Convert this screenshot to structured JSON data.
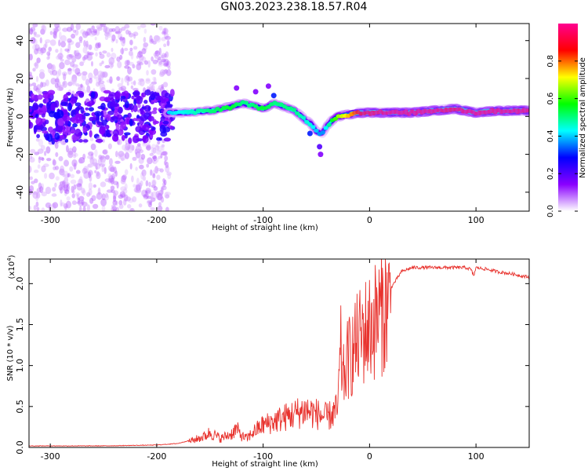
{
  "title": "GN03.2023.238.18.57.R04",
  "chart_data": [
    {
      "type": "heatmap",
      "xlabel": "Height of straight line (km)",
      "ylabel": "Frequency (Hz)",
      "xlim": [
        -320,
        150
      ],
      "ylim": [
        -50,
        49
      ],
      "xticks": [
        -300,
        -200,
        -100,
        0,
        100
      ],
      "xtick_labels": [
        "-300",
        "-200",
        "-100",
        "0",
        "100"
      ],
      "yticks": [
        -40,
        -20,
        0,
        20,
        40
      ],
      "ytick_labels": [
        "-40",
        "-20",
        "0",
        "20",
        "40"
      ],
      "colorbar": {
        "label": "Normalized spectral amplitude",
        "range": [
          0,
          1
        ],
        "ticks": [
          0,
          0.2,
          0.4,
          0.6,
          0.8
        ],
        "tick_labels": [
          "0.0",
          "0.2",
          "0.4",
          "0.6",
          "0.8"
        ],
        "colors": [
          "#ffffff",
          "#8a00ff",
          "#0000ff",
          "#00ffff",
          "#00ff00",
          "#ffff00",
          "#ff0000",
          "#ff0090"
        ]
      },
      "ridge": {
        "x": [
          -190,
          -170,
          -150,
          -130,
          -120,
          -110,
          -100,
          -90,
          -80,
          -70,
          -60,
          -55,
          -50,
          -45,
          -40,
          -35,
          -30,
          -20,
          -10,
          0,
          20,
          40,
          60,
          80,
          90,
          100,
          120,
          150
        ],
        "y": [
          2,
          2,
          3,
          5,
          7,
          6,
          4,
          7,
          5,
          3,
          -2,
          -4,
          -8,
          -9,
          -5,
          -2,
          0,
          1,
          2,
          2,
          2,
          2,
          3,
          4,
          3,
          2,
          3,
          3
        ],
        "amplitude": [
          0.35,
          0.4,
          0.45,
          0.5,
          0.45,
          0.45,
          0.5,
          0.45,
          0.45,
          0.45,
          0.4,
          0.4,
          0.35,
          0.3,
          0.4,
          0.5,
          0.6,
          0.7,
          0.8,
          0.85,
          0.9,
          0.9,
          0.9,
          0.85,
          0.9,
          0.9,
          0.9,
          0.9
        ]
      }
    },
    {
      "type": "line",
      "xlabel": "Height of straight line (km)",
      "ylabel": "SNR (10 * v/v)",
      "multiplier_label": "(x10",
      "multiplier_exp": "4",
      "multiplier_close": ")",
      "xlim": [
        -320,
        150
      ],
      "ylim": [
        0,
        2.3
      ],
      "xticks": [
        -300,
        -200,
        -100,
        0,
        100
      ],
      "xtick_labels": [
        "-300",
        "-200",
        "-100",
        "0",
        "100"
      ],
      "yticks": [
        0,
        0.5,
        1.0,
        1.5,
        2.0
      ],
      "ytick_labels": [
        "0.0",
        "0.5",
        "1.0",
        "1.5",
        "2.0"
      ],
      "series": [
        {
          "color": "#e8332e",
          "x": [
            -320,
            -250,
            -200,
            -180,
            -165,
            -155,
            -150,
            -145,
            -140,
            -130,
            -125,
            -120,
            -115,
            -110,
            -100,
            -90,
            -80,
            -70,
            -60,
            -50,
            -40,
            -35,
            -30,
            -27,
            -25,
            -20,
            -15,
            -10,
            -5,
            0,
            5,
            10,
            20,
            25,
            30,
            40,
            60,
            80,
            90,
            95,
            98,
            100,
            110,
            120,
            135,
            150
          ],
          "y": [
            0.02,
            0.02,
            0.03,
            0.05,
            0.1,
            0.15,
            0.2,
            0.16,
            0.12,
            0.18,
            0.25,
            0.15,
            0.12,
            0.2,
            0.3,
            0.35,
            0.4,
            0.45,
            0.5,
            0.45,
            0.4,
            0.45,
            0.5,
            1.3,
            0.9,
            1.2,
            1.3,
            1.45,
            1.55,
            1.6,
            1.7,
            1.8,
            1.95,
            2.05,
            2.15,
            2.2,
            2.2,
            2.2,
            2.2,
            2.18,
            2.1,
            2.2,
            2.18,
            2.15,
            2.12,
            2.08
          ]
        }
      ]
    }
  ]
}
